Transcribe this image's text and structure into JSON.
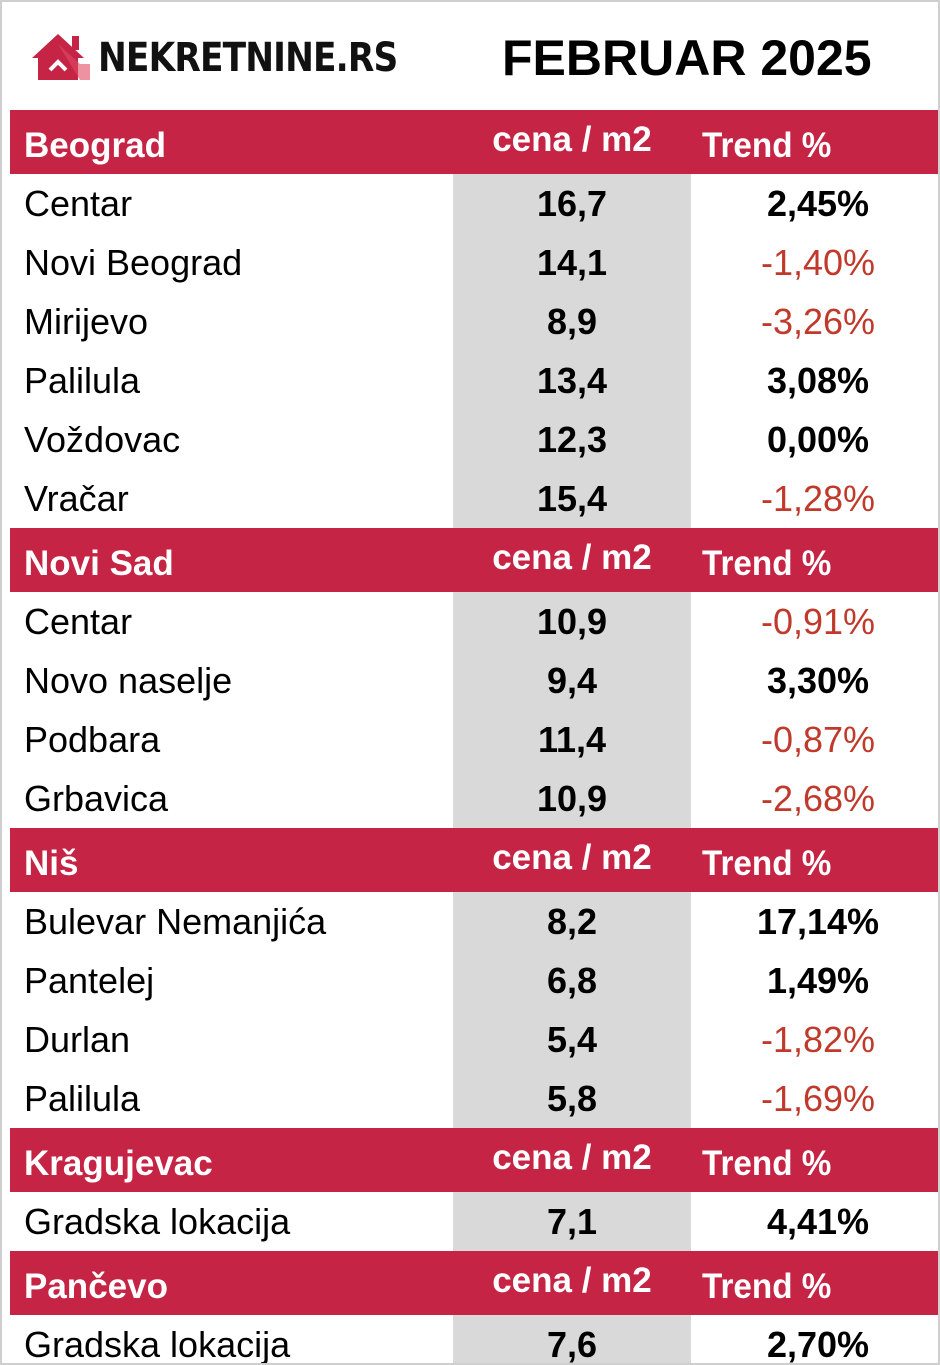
{
  "header": {
    "logo_text": "NEKRETNINE.RS",
    "title": "FEBRUAR 2025"
  },
  "colors": {
    "accent": "#c62445",
    "negative": "#c0392b",
    "price_bg": "#d9d9d9"
  },
  "sections": [
    {
      "city": "Beograd",
      "price_header": "cena / m2",
      "trend_header": "Trend %",
      "rows": [
        {
          "name": "Centar",
          "price": "16,7",
          "trend": "2,45%",
          "negative": false
        },
        {
          "name": "Novi Beograd",
          "price": "14,1",
          "trend": "-1,40%",
          "negative": true
        },
        {
          "name": "Mirijevo",
          "price": "8,9",
          "trend": "-3,26%",
          "negative": true
        },
        {
          "name": "Palilula",
          "price": "13,4",
          "trend": "3,08%",
          "negative": false
        },
        {
          "name": "Voždovac",
          "price": "12,3",
          "trend": "0,00%",
          "negative": false
        },
        {
          "name": "Vračar",
          "price": "15,4",
          "trend": "-1,28%",
          "negative": true
        }
      ]
    },
    {
      "city": "Novi Sad",
      "price_header": "cena / m2",
      "trend_header": "Trend %",
      "rows": [
        {
          "name": "Centar",
          "price": "10,9",
          "trend": "-0,91%",
          "negative": true
        },
        {
          "name": "Novo naselje",
          "price": "9,4",
          "trend": "3,30%",
          "negative": false
        },
        {
          "name": "Podbara",
          "price": "11,4",
          "trend": "-0,87%",
          "negative": true
        },
        {
          "name": "Grbavica",
          "price": "10,9",
          "trend": "-2,68%",
          "negative": true
        }
      ]
    },
    {
      "city": "Niš",
      "price_header": "cena / m2",
      "trend_header": "Trend %",
      "rows": [
        {
          "name": "Bulevar Nemanjića",
          "price": "8,2",
          "trend": "17,14%",
          "negative": false
        },
        {
          "name": "Pantelej",
          "price": "6,8",
          "trend": "1,49%",
          "negative": false
        },
        {
          "name": "Durlan",
          "price": "5,4",
          "trend": "-1,82%",
          "negative": true
        },
        {
          "name": "Palilula",
          "price": "5,8",
          "trend": "-1,69%",
          "negative": true
        }
      ]
    },
    {
      "city": "Kragujevac",
      "price_header": "cena / m2",
      "trend_header": "Trend %",
      "rows": [
        {
          "name": "Gradska lokacija",
          "price": "7,1",
          "trend": "4,41%",
          "negative": false
        }
      ]
    },
    {
      "city": "Pančevo",
      "price_header": "cena / m2",
      "trend_header": "Trend %",
      "rows": [
        {
          "name": "Gradska lokacija",
          "price": "7,6",
          "trend": "2,70%",
          "negative": false
        }
      ]
    }
  ]
}
